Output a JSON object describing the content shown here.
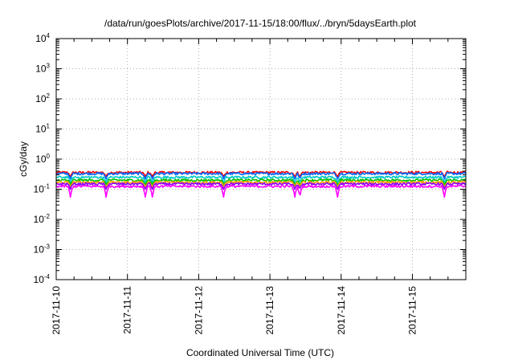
{
  "chart_data": {
    "type": "line",
    "title": "/data/run/goesPlots/archive/2017-11-15/18:00/flux/../bryn/5daysEarth.plot",
    "xlabel": "Coordinated Universal Time (UTC)",
    "ylabel": "cGy/day",
    "y_scale": "log",
    "ylim": [
      0.0001,
      10000
    ],
    "xlim": [
      "2017-11-10",
      "2017-11-15 18:00"
    ],
    "grid": true,
    "legend": "none",
    "y_ticks": [
      {
        "base": "10",
        "exp": "-4",
        "value": 0.0001
      },
      {
        "base": "10",
        "exp": "-3",
        "value": 0.001
      },
      {
        "base": "10",
        "exp": "-2",
        "value": 0.01
      },
      {
        "base": "10",
        "exp": "-1",
        "value": 0.1
      },
      {
        "base": "10",
        "exp": "0",
        "value": 1
      },
      {
        "base": "10",
        "exp": "1",
        "value": 10
      },
      {
        "base": "10",
        "exp": "2",
        "value": 100
      },
      {
        "base": "10",
        "exp": "3",
        "value": 1000
      },
      {
        "base": "10",
        "exp": "4",
        "value": 10000
      }
    ],
    "x_ticks": [
      "2017-11-10",
      "2017-11-11",
      "2017-11-12",
      "2017-11-13",
      "2017-11-14",
      "2017-11-15"
    ],
    "series": [
      {
        "color": "#ff0000",
        "baseline": 0.36,
        "min_dip": 0.26
      },
      {
        "color": "#0066ff",
        "baseline": 0.33,
        "min_dip": 0.22
      },
      {
        "color": "#00c8c8",
        "baseline": 0.25,
        "min_dip": 0.17
      },
      {
        "color": "#00c000",
        "baseline": 0.2,
        "min_dip": 0.14
      },
      {
        "color": "#ffa000",
        "baseline": 0.17,
        "min_dip": 0.12
      },
      {
        "color": "#8a00ff",
        "baseline": 0.15,
        "min_dip": 0.1
      },
      {
        "color": "#ff00ff",
        "baseline": 0.125,
        "min_dip": 0.055
      }
    ],
    "dips_days": [
      0.2,
      0.7,
      1.25,
      1.35,
      2.35,
      3.35,
      3.42,
      3.95,
      5.45
    ]
  }
}
